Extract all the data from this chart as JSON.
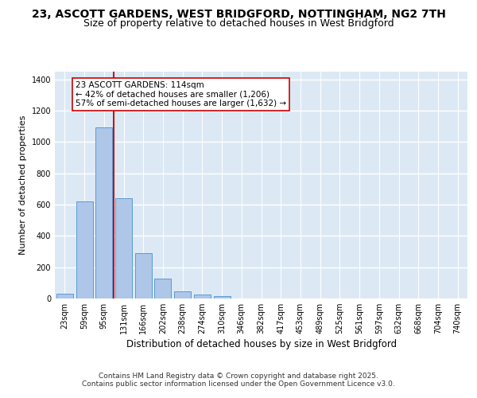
{
  "title_line1": "23, ASCOTT GARDENS, WEST BRIDGFORD, NOTTINGHAM, NG2 7TH",
  "title_line2": "Size of property relative to detached houses in West Bridgford",
  "xlabel": "Distribution of detached houses by size in West Bridgford",
  "ylabel": "Number of detached properties",
  "categories": [
    "23sqm",
    "59sqm",
    "95sqm",
    "131sqm",
    "166sqm",
    "202sqm",
    "238sqm",
    "274sqm",
    "310sqm",
    "346sqm",
    "382sqm",
    "417sqm",
    "453sqm",
    "489sqm",
    "525sqm",
    "561sqm",
    "597sqm",
    "632sqm",
    "668sqm",
    "704sqm",
    "740sqm"
  ],
  "values": [
    30,
    620,
    1095,
    640,
    290,
    125,
    47,
    25,
    15,
    0,
    0,
    0,
    0,
    0,
    0,
    0,
    0,
    0,
    0,
    0,
    0
  ],
  "bar_color": "#aec6e8",
  "bar_edge_color": "#5b9bd5",
  "vline_x_index": 2.5,
  "vline_color": "#cc0000",
  "annotation_text": "23 ASCOTT GARDENS: 114sqm\n← 42% of detached houses are smaller (1,206)\n57% of semi-detached houses are larger (1,632) →",
  "annotation_box_color": "#ffffff",
  "annotation_box_edge_color": "#cc0000",
  "annotation_fontsize": 7.5,
  "ylim": [
    0,
    1450
  ],
  "yticks": [
    0,
    200,
    400,
    600,
    800,
    1000,
    1200,
    1400
  ],
  "background_color": "#dce9f5",
  "grid_color": "#ffffff",
  "title_fontsize": 10,
  "subtitle_fontsize": 9,
  "xlabel_fontsize": 8.5,
  "ylabel_fontsize": 8,
  "tick_fontsize": 7,
  "footer_line1": "Contains HM Land Registry data © Crown copyright and database right 2025.",
  "footer_line2": "Contains public sector information licensed under the Open Government Licence v3.0.",
  "footer_fontsize": 6.5
}
